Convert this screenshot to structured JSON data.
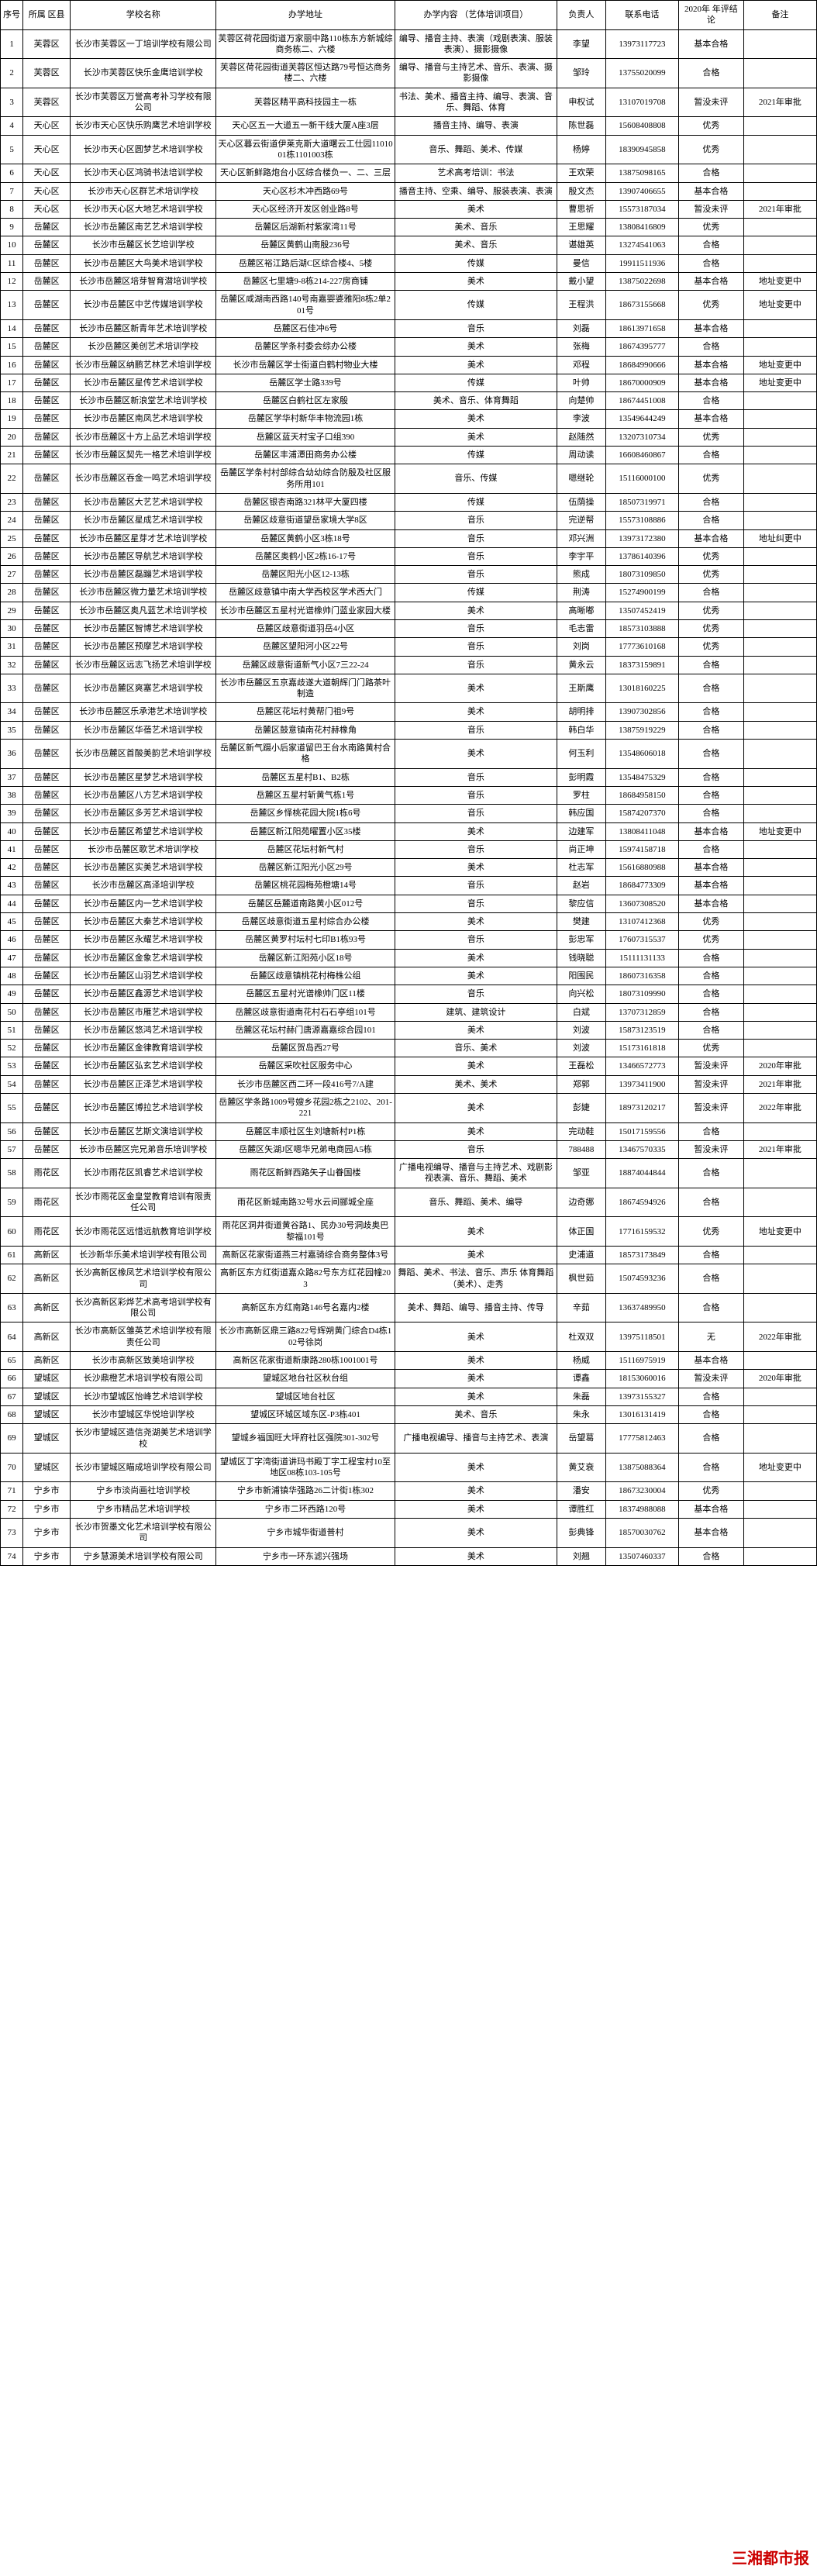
{
  "watermark": "三湘都市报",
  "headers": {
    "seq": "序号",
    "district": "所属\n区县",
    "name": "学校名称",
    "addr": "办学地址",
    "content": "办学内容\n（艺体培训项目）",
    "person": "负责人",
    "phone": "联系电话",
    "conclusion": "2020年\n年评结论",
    "remark": "备注"
  },
  "rows": [
    {
      "seq": "1",
      "district": "芙蓉区",
      "name": "长沙市芙蓉区一丁培训学校有限公司",
      "addr": "芙蓉区荷花园街道万家丽中路110栋东方新城综商务栋二、六楼",
      "content": "编导、播音主持、表演（戏剧表演、服装表演）、摄影摄像",
      "person": "李望",
      "phone": "13973117723",
      "conclusion": "基本合格",
      "remark": ""
    },
    {
      "seq": "2",
      "district": "芙蓉区",
      "name": "长沙市芙蓉区快乐金鹰培训学校",
      "addr": "芙蓉区荷花园街道芙蓉区恒达路79号恒达商务楼二、六楼",
      "content": "编导、播音与主持艺术、音乐、表演、摄影摄像",
      "person": "邹玲",
      "phone": "13755020099",
      "conclusion": "合格",
      "remark": ""
    },
    {
      "seq": "3",
      "district": "芙蓉区",
      "name": "长沙市芙蓉区万誉高考补习学校有限公司",
      "addr": "芙蓉区精平高科技园主一栋",
      "content": "书法、美术、播音主持、编导、表演、音乐、舞蹈、体育",
      "person": "申权试",
      "phone": "13107019708",
      "conclusion": "暂没未评",
      "remark": "2021年审批"
    },
    {
      "seq": "4",
      "district": "天心区",
      "name": "长沙市天心区快乐购鹰艺术培训学校",
      "addr": "天心区五一大道五一新干线大厦A座3层",
      "content": "播音主持、编导、表演",
      "person": "陈世磊",
      "phone": "15608408808",
      "conclusion": "优秀",
      "remark": ""
    },
    {
      "seq": "5",
      "district": "天心区",
      "name": "长沙市天心区圆梦艺术培训学校",
      "addr": "天心区暮云街道伊莱克斯大道曙云工仕园1101001栋1101003栋",
      "content": "音乐、舞蹈、美术、传媒",
      "person": "杨婷",
      "phone": "18390945858",
      "conclusion": "优秀",
      "remark": ""
    },
    {
      "seq": "6",
      "district": "天心区",
      "name": "长沙市天心区鸿骑书法培训学校",
      "addr": "天心区新鲜路炮台小区综合楼负一、二、三层",
      "content": "艺术高考培训：书法",
      "person": "王欢荣",
      "phone": "13875098165",
      "conclusion": "合格",
      "remark": ""
    },
    {
      "seq": "7",
      "district": "天心区",
      "name": "长沙市天心区群艺术培训学校",
      "addr": "天心区杉木冲西路69号",
      "content": "播音主持、空乘、编导、服装表演、表演",
      "person": "殷文杰",
      "phone": "13907406655",
      "conclusion": "基本合格",
      "remark": ""
    },
    {
      "seq": "8",
      "district": "天心区",
      "name": "长沙市天心区大地艺术培训学校",
      "addr": "天心区经济开发区创业路8号",
      "content": "美术",
      "person": "曹思祈",
      "phone": "15573187034",
      "conclusion": "暂没未评",
      "remark": "2021年审批"
    },
    {
      "seq": "9",
      "district": "岳麓区",
      "name": "长沙市岳麓区南艺艺术培训学校",
      "addr": "岳麓区后湖新村紫家湾11号",
      "content": "美术、音乐",
      "person": "王思耀",
      "phone": "13808416809",
      "conclusion": "优秀",
      "remark": ""
    },
    {
      "seq": "10",
      "district": "岳麓区",
      "name": "长沙市岳麓区长艺培训学校",
      "addr": "岳麓区黄鹤山南殷236号",
      "content": "美术、音乐",
      "person": "谌雄英",
      "phone": "13274541063",
      "conclusion": "合格",
      "remark": ""
    },
    {
      "seq": "11",
      "district": "岳麓区",
      "name": "长沙市岳麓区大鸟美术培训学校",
      "addr": "岳麓区裕江路后湖C区综合楼4、5楼",
      "content": "传媒",
      "person": "曼信",
      "phone": "19911511936",
      "conclusion": "合格",
      "remark": ""
    },
    {
      "seq": "12",
      "district": "岳麓区",
      "name": "长沙市岳麓区培芽智育潜培训学校",
      "addr": "岳麓区七里塘9-8栋214-227房商铺",
      "content": "美术",
      "person": "戴小望",
      "phone": "13875022698",
      "conclusion": "基本合格",
      "remark": "地址变更中"
    },
    {
      "seq": "13",
      "district": "岳麓区",
      "name": "长沙市岳麓区中艺传媒培训学校",
      "addr": "岳麓区咸湖南西路140号南嘉婴婆雅阳8栋2单201号",
      "content": "传媒",
      "person": "王程洪",
      "phone": "18673155668",
      "conclusion": "优秀",
      "remark": "地址变更中"
    },
    {
      "seq": "14",
      "district": "岳麓区",
      "name": "长沙市岳麓区新青年艺术培训学校",
      "addr": "岳麓区石佳冲6号",
      "content": "音乐",
      "person": "刘磊",
      "phone": "18613971658",
      "conclusion": "基本合格",
      "remark": ""
    },
    {
      "seq": "15",
      "district": "岳麓区",
      "name": "长沙岳麓区美创艺术培训学校",
      "addr": "岳麓区学条村委会综办公楼",
      "content": "美术",
      "person": "张梅",
      "phone": "18674395777",
      "conclusion": "合格",
      "remark": ""
    },
    {
      "seq": "16",
      "district": "岳麓区",
      "name": "长沙市岳麓区纳鹏艺林艺术培训学校",
      "addr": "长沙市岳麓区学士街道白鹤村物业大楼",
      "content": "美术",
      "person": "邓程",
      "phone": "18684990666",
      "conclusion": "基本合格",
      "remark": "地址变更中"
    },
    {
      "seq": "17",
      "district": "岳麓区",
      "name": "长沙市岳麓区星传艺术培训学校",
      "addr": "岳麓区学士路339号",
      "content": "传媒",
      "person": "叶帅",
      "phone": "18670000909",
      "conclusion": "基本合格",
      "remark": "地址变更中"
    },
    {
      "seq": "18",
      "district": "岳麓区",
      "name": "长沙市岳麓区新浪堂艺术培训学校",
      "addr": "岳麓区白鹤社区左家殷",
      "content": "美术、音乐、体育舞蹈",
      "person": "向楚帅",
      "phone": "18674451008",
      "conclusion": "合格",
      "remark": ""
    },
    {
      "seq": "19",
      "district": "岳麓区",
      "name": "长沙市岳麓区南凤艺术培训学校",
      "addr": "岳麓区学华村新华丰物流园1栋",
      "content": "美术",
      "person": "李波",
      "phone": "13549644249",
      "conclusion": "基本合格",
      "remark": ""
    },
    {
      "seq": "20",
      "district": "岳麓区",
      "name": "长沙市岳麓区十方上品艺术培训学校",
      "addr": "岳麓区蓝天村宝子口组390",
      "content": "美术",
      "person": "赵随然",
      "phone": "13207310734",
      "conclusion": "优秀",
      "remark": ""
    },
    {
      "seq": "21",
      "district": "岳麓区",
      "name": "长沙市岳麓区契先一格艺术培训学校",
      "addr": "岳麓区丰浦潭田商务办公楼",
      "content": "传媒",
      "person": "周动读",
      "phone": "16608460867",
      "conclusion": "合格",
      "remark": ""
    },
    {
      "seq": "22",
      "district": "岳麓区",
      "name": "长沙市岳麓区吞金一鸣艺术培训学校",
      "addr": "岳麓区学条村村部综合幼幼综合防殷及社区服务所用101",
      "content": "音乐、传媒",
      "person": "嗯继轮",
      "phone": "15116000100",
      "conclusion": "优秀",
      "remark": ""
    },
    {
      "seq": "23",
      "district": "岳麓区",
      "name": "长沙市岳麓区大艺艺术培训学校",
      "addr": "岳麓区银杏南路321林平大厦四楼",
      "content": "传媒",
      "person": "伍荫操",
      "phone": "18507319971",
      "conclusion": "合格",
      "remark": ""
    },
    {
      "seq": "24",
      "district": "岳麓区",
      "name": "长沙市岳麓区星成艺术培训学校",
      "addr": "岳麓区歧意街道望岳家境大学8区",
      "content": "音乐",
      "person": "完逆帮",
      "phone": "15573108886",
      "conclusion": "合格",
      "remark": ""
    },
    {
      "seq": "25",
      "district": "岳麓区",
      "name": "长沙市岳麓区星芽才艺术培训学校",
      "addr": "岳麓区黄鹤小区3栋18号",
      "content": "音乐",
      "person": "邓兴洲",
      "phone": "13973172380",
      "conclusion": "基本合格",
      "remark": "地址纠更中"
    },
    {
      "seq": "26",
      "district": "岳麓区",
      "name": "长沙市岳麓区导航艺术培训学校",
      "addr": "岳麓区奥鹤小区2栋16-17号",
      "content": "音乐",
      "person": "李宇平",
      "phone": "13786140396",
      "conclusion": "优秀",
      "remark": ""
    },
    {
      "seq": "27",
      "district": "岳麓区",
      "name": "长沙市岳麓区磊蹦艺术培训学校",
      "addr": "岳麓区阳光小区12-13栋",
      "content": "音乐",
      "person": "熊成",
      "phone": "18073109850",
      "conclusion": "优秀",
      "remark": ""
    },
    {
      "seq": "28",
      "district": "岳麓区",
      "name": "长沙市岳麓区微力量艺术培训学校",
      "addr": "岳麓区歧意镇中南大学西校区学术西大门",
      "content": "传媒",
      "person": "荆涛",
      "phone": "15274900199",
      "conclusion": "合格",
      "remark": ""
    },
    {
      "seq": "29",
      "district": "岳麓区",
      "name": "长沙市岳麓区奥凡蓝艺术培训学校",
      "addr": "长沙市岳麓区五星村光谱橡帅门蓝业家园大楼",
      "content": "美术",
      "person": "高晰嘟",
      "phone": "13507452419",
      "conclusion": "优秀",
      "remark": ""
    },
    {
      "seq": "30",
      "district": "岳麓区",
      "name": "长沙市岳麓区智博艺术培训学校",
      "addr": "岳麓区歧意街道羽岳4小区",
      "content": "音乐",
      "person": "毛志雷",
      "phone": "18573103888",
      "conclusion": "优秀",
      "remark": ""
    },
    {
      "seq": "31",
      "district": "岳麓区",
      "name": "长沙市岳麓区预摩艺术培训学校",
      "addr": "岳麓区望阳河小区22号",
      "content": "音乐",
      "person": "刘岗",
      "phone": "17773610168",
      "conclusion": "优秀",
      "remark": ""
    },
    {
      "seq": "32",
      "district": "岳麓区",
      "name": "长沙市岳麓区远志飞扬艺术培训学校",
      "addr": "岳麓区歧意街道新气小区7三22-24",
      "content": "音乐",
      "person": "黄永云",
      "phone": "18373159891",
      "conclusion": "合格",
      "remark": ""
    },
    {
      "seq": "33",
      "district": "岳麓区",
      "name": "长沙市岳麓区爽塞艺术培训学校",
      "addr": "长沙市岳麓区五京嘉歧遂大道朝辉门门路茶叶制造",
      "content": "美术",
      "person": "王斯鹰",
      "phone": "13018160225",
      "conclusion": "合格",
      "remark": ""
    },
    {
      "seq": "34",
      "district": "岳麓区",
      "name": "长沙市岳麓区乐承港艺术培训学校",
      "addr": "岳麓区花坛村黄帮门祖9号",
      "content": "美术",
      "person": "胡明排",
      "phone": "13907302856",
      "conclusion": "合格",
      "remark": ""
    },
    {
      "seq": "35",
      "district": "岳麓区",
      "name": "长沙市岳麓区华蓓艺术培训学校",
      "addr": "岳麓区鼓意镇南花村赫橡角",
      "content": "音乐",
      "person": "韩白华",
      "phone": "13875919229",
      "conclusion": "合格",
      "remark": ""
    },
    {
      "seq": "36",
      "district": "岳麓区",
      "name": "长沙市岳麓区首酸美韵艺术培训学校",
      "addr": "岳麓区新气蹑小后家道留巴王台水南路黄村合格",
      "content": "美术",
      "person": "何玉利",
      "phone": "13548606018",
      "conclusion": "合格",
      "remark": ""
    },
    {
      "seq": "37",
      "district": "岳麓区",
      "name": "长沙市岳麓区星梦艺术培训学校",
      "addr": "岳麓区五星村B1、B2栋",
      "content": "音乐",
      "person": "彭明霞",
      "phone": "13548475329",
      "conclusion": "合格",
      "remark": ""
    },
    {
      "seq": "38",
      "district": "岳麓区",
      "name": "长沙市岳麓区八方艺术培训学校",
      "addr": "岳麓区五星村斩黄气栋1号",
      "content": "音乐",
      "person": "罗柱",
      "phone": "18684958150",
      "conclusion": "合格",
      "remark": ""
    },
    {
      "seq": "39",
      "district": "岳麓区",
      "name": "长沙市岳麓区多芳艺术培训学校",
      "addr": "岳麓区乡怿桃花园大院1栋6号",
      "content": "音乐",
      "person": "韩应国",
      "phone": "15874207370",
      "conclusion": "合格",
      "remark": ""
    },
    {
      "seq": "40",
      "district": "岳麓区",
      "name": "长沙市岳麓区希望艺术培训学校",
      "addr": "岳麓区新江阳苑曜置小区35楼",
      "content": "美术",
      "person": "边建军",
      "phone": "13808411048",
      "conclusion": "基本合格",
      "remark": "地址变更中"
    },
    {
      "seq": "41",
      "district": "岳麓区",
      "name": "长沙市岳麓区歌艺术培训学校",
      "addr": "岳麓区花坛村新气村",
      "content": "音乐",
      "person": "尚正坤",
      "phone": "15974158718",
      "conclusion": "合格",
      "remark": ""
    },
    {
      "seq": "42",
      "district": "岳麓区",
      "name": "长沙市岳麓区实美艺术培训学校",
      "addr": "岳麓区新江阳光小区29号",
      "content": "美术",
      "person": "杜志军",
      "phone": "15616880988",
      "conclusion": "基本合格",
      "remark": ""
    },
    {
      "seq": "43",
      "district": "岳麓区",
      "name": "长沙市岳麓区高泽培训学校",
      "addr": "岳麓区桃花园梅苑橙塘14号",
      "content": "音乐",
      "person": "赵岩",
      "phone": "18684773309",
      "conclusion": "基本合格",
      "remark": ""
    },
    {
      "seq": "44",
      "district": "岳麓区",
      "name": "长沙市岳麓区内一艺术培训学校",
      "addr": "岳麓区岳麓道南路黄小区012号",
      "content": "音乐",
      "person": "黎应信",
      "phone": "13607308520",
      "conclusion": "基本合格",
      "remark": ""
    },
    {
      "seq": "45",
      "district": "岳麓区",
      "name": "长沙市岳麓区大秦艺术培训学校",
      "addr": "岳麓区歧意街道五星村综合办公楼",
      "content": "美术",
      "person": "樊建",
      "phone": "13107412368",
      "conclusion": "优秀",
      "remark": ""
    },
    {
      "seq": "46",
      "district": "岳麓区",
      "name": "长沙市岳麓区永耀艺术培训学校",
      "addr": "岳麓区黄罗村坛村七印B1栋93号",
      "content": "音乐",
      "person": "彭忠军",
      "phone": "17607315537",
      "conclusion": "优秀",
      "remark": ""
    },
    {
      "seq": "47",
      "district": "岳麓区",
      "name": "长沙市岳麓区金象艺术培训学校",
      "addr": "岳麓区新江阳苑小区18号",
      "content": "美术",
      "person": "钱晓聪",
      "phone": "15111131133",
      "conclusion": "合格",
      "remark": ""
    },
    {
      "seq": "48",
      "district": "岳麓区",
      "name": "长沙市岳麓区山羽艺术培训学校",
      "addr": "岳麓区歧意镇桃花村梅株公组",
      "content": "美术",
      "person": "阳围民",
      "phone": "18607316358",
      "conclusion": "合格",
      "remark": ""
    },
    {
      "seq": "49",
      "district": "岳麓区",
      "name": "长沙市岳麓区鑫源艺术培训学校",
      "addr": "岳麓区五星村光谱橡帅门区11楼",
      "content": "音乐",
      "person": "向兴松",
      "phone": "18073109990",
      "conclusion": "合格",
      "remark": ""
    },
    {
      "seq": "50",
      "district": "岳麓区",
      "name": "长沙市岳麓区市雁艺术培训学校",
      "addr": "岳麓区歧意街道南花村石石亭组101号",
      "content": "建筑、建筑设计",
      "person": "白斌",
      "phone": "13707312859",
      "conclusion": "合格",
      "remark": ""
    },
    {
      "seq": "51",
      "district": "岳麓区",
      "name": "长沙市岳麓区悠鸿艺术培训学校",
      "addr": "岳麓区花坛村赫门唐源嘉嘉综合园101",
      "content": "美术",
      "person": "刘波",
      "phone": "15873123519",
      "conclusion": "合格",
      "remark": ""
    },
    {
      "seq": "52",
      "district": "岳麓区",
      "name": "长沙市岳麓区金律教育培训学校",
      "addr": "岳麓区贺岛西27号",
      "content": "音乐、美术",
      "person": "刘波",
      "phone": "15173161818",
      "conclusion": "优秀",
      "remark": ""
    },
    {
      "seq": "53",
      "district": "岳麓区",
      "name": "长沙市岳麓区弘玄艺术培训学校",
      "addr": "岳麓区采吹社区服务中心",
      "content": "美术",
      "person": "王磊松",
      "phone": "13466572773",
      "conclusion": "暂没未评",
      "remark": "2020年审批"
    },
    {
      "seq": "54",
      "district": "岳麓区",
      "name": "长沙市岳麓区正泽艺术培训学校",
      "addr": "长沙市岳麓区西二环一段416号7/A建",
      "content": "美术、美术",
      "person": "郑郭",
      "phone": "13973411900",
      "conclusion": "暂没未评",
      "remark": "2021年审批"
    },
    {
      "seq": "55",
      "district": "岳麓区",
      "name": "长沙市岳麓区博拉艺术培训学校",
      "addr": "岳麓区学条路1009号嫂乡花园2栋之2102、201-221",
      "content": "美术",
      "person": "彭婕",
      "phone": "18973120217",
      "conclusion": "暂没未评",
      "remark": "2022年审批"
    },
    {
      "seq": "56",
      "district": "岳麓区",
      "name": "长沙市岳麓区艺斯文演培训学校",
      "addr": "岳麓区丰顺社区生刘塘新村P1栋",
      "content": "美术",
      "person": "完动鞋",
      "phone": "15017159556",
      "conclusion": "合格",
      "remark": ""
    },
    {
      "seq": "57",
      "district": "岳麓区",
      "name": "长沙市岳麓区完兄弟音乐培训学校",
      "addr": "岳麓区矢湖J区嗯华兄弟电商园A5栋",
      "content": "音乐",
      "person": "788488",
      "phone": "13467570335",
      "conclusion": "暂没未评",
      "remark": "2021年审批"
    },
    {
      "seq": "58",
      "district": "雨花区",
      "name": "长沙市雨花区凯睿艺术培训学校",
      "addr": "雨花区新鲜西路矢子山眷国楼",
      "content": "广播电视编导、播音与主持艺术、戏剧影视表演、音乐、舞蹈、美术",
      "person": "邹亚",
      "phone": "18874044844",
      "conclusion": "合格",
      "remark": ""
    },
    {
      "seq": "59",
      "district": "雨花区",
      "name": "长沙市雨花区金皇堂教育培训有限责任公司",
      "addr": "雨花区新城南路32号水云间郦城全座",
      "content": "音乐、舞蹈、美术、编导",
      "person": "边奇娜",
      "phone": "18674594926",
      "conclusion": "合格",
      "remark": ""
    },
    {
      "seq": "60",
      "district": "雨花区",
      "name": "长沙市雨花区远惜远航教育培训学校",
      "addr": "雨花区洞井街道黄谷路1、民办30号洞歧奥巴黎福101号",
      "content": "美术",
      "person": "体正国",
      "phone": "17716159532",
      "conclusion": "优秀",
      "remark": "地址变更中"
    },
    {
      "seq": "61",
      "district": "高新区",
      "name": "长沙新华乐美术培训学校有限公司",
      "addr": "高新区花家街道燕三村嘉骑综合商务整体3号",
      "content": "美术",
      "person": "史浦道",
      "phone": "18573173849",
      "conclusion": "合格",
      "remark": ""
    },
    {
      "seq": "62",
      "district": "高新区",
      "name": "长沙高新区橡凤艺术培训学校有限公司",
      "addr": "高新区东方红街道嘉众路82号东方红花园幢203",
      "content": "舞蹈、美术、书法、音乐、声乐 体育舞蹈（美术）、走秀",
      "person": "枫世茹",
      "phone": "15074593236",
      "conclusion": "合格",
      "remark": ""
    },
    {
      "seq": "63",
      "district": "高新区",
      "name": "长沙高新区彩烨艺术高考培训学校有限公司",
      "addr": "高新区东方红南路146号名嘉内2楼",
      "content": "美术、舞蹈、编导、播音主持、传导",
      "person": "辛茹",
      "phone": "13637489950",
      "conclusion": "合格",
      "remark": ""
    },
    {
      "seq": "64",
      "district": "高新区",
      "name": "长沙市高新区雏英艺术培训学校有限责任公司",
      "addr": "长沙市高新区鼎三路822号辉朔黄门综合D4栋102号徐岗",
      "content": "美术",
      "person": "杜双双",
      "phone": "13975118501",
      "conclusion": "无",
      "remark": "2022年审批"
    },
    {
      "seq": "65",
      "district": "高新区",
      "name": "长沙市高新区致美培训学校",
      "addr": "高新区花家街道新康路280栋1001001号",
      "content": "美术",
      "person": "杨威",
      "phone": "15116975919",
      "conclusion": "基本合格",
      "remark": ""
    },
    {
      "seq": "66",
      "district": "望城区",
      "name": "长沙鼎橙艺术培训学校有限公司",
      "addr": "望城区地台社区秋台组",
      "content": "美术",
      "person": "谭鑫",
      "phone": "18153060016",
      "conclusion": "暂没未评",
      "remark": "2020年审批"
    },
    {
      "seq": "67",
      "district": "望城区",
      "name": "长沙市望城区怡峰艺术培训学校",
      "addr": "望城区地台社区",
      "content": "美术",
      "person": "朱磊",
      "phone": "13973155327",
      "conclusion": "合格",
      "remark": ""
    },
    {
      "seq": "68",
      "district": "望城区",
      "name": "长沙市望城区华悦培训学校",
      "addr": "望城区环城区域东区-P3栋401",
      "content": "美术、音乐",
      "person": "朱永",
      "phone": "13016131419",
      "conclusion": "合格",
      "remark": ""
    },
    {
      "seq": "69",
      "district": "望城区",
      "name": "长沙市望城区造信尧湖美艺术培训学校",
      "addr": "望城乡福国旺大坪府社区强院301-302号",
      "content": "广播电视编导、播音与主持艺术、表演",
      "person": "岳望葛",
      "phone": "17775812463",
      "conclusion": "合格",
      "remark": ""
    },
    {
      "seq": "70",
      "district": "望城区",
      "name": "长沙市望城区瞄成培训学校有限公司",
      "addr": "望城区丁字湾街道讲玛书殿丁字工程宝村10至地区08栋103-105号",
      "content": "美术",
      "person": "黄艾衰",
      "phone": "13875088364",
      "conclusion": "合格",
      "remark": "地址变更中"
    },
    {
      "seq": "71",
      "district": "宁乡市",
      "name": "宁乡市淡尚画社培训学校",
      "addr": "宁乡市新浦镇华强路26二计街1栋302",
      "content": "美术",
      "person": "潘安",
      "phone": "18673230004",
      "conclusion": "优秀",
      "remark": ""
    },
    {
      "seq": "72",
      "district": "宁乡市",
      "name": "宁乡市精品艺术培训学校",
      "addr": "宁乡市二环西路120号",
      "content": "美术",
      "person": "谭胜红",
      "phone": "18374988088",
      "conclusion": "基本合格",
      "remark": ""
    },
    {
      "seq": "73",
      "district": "宁乡市",
      "name": "长沙市贺墨文化艺术培训学校有限公司",
      "addr": "宁乡市城华街道普村",
      "content": "美术",
      "person": "彭典锋",
      "phone": "18570030762",
      "conclusion": "基本合格",
      "remark": ""
    },
    {
      "seq": "74",
      "district": "宁乡市",
      "name": "宁乡慧源美术培训学校有限公司",
      "addr": "宁乡市一环东滤兴强场",
      "content": "美术",
      "person": "刘翘",
      "phone": "13507460337",
      "conclusion": "合格",
      "remark": ""
    }
  ]
}
